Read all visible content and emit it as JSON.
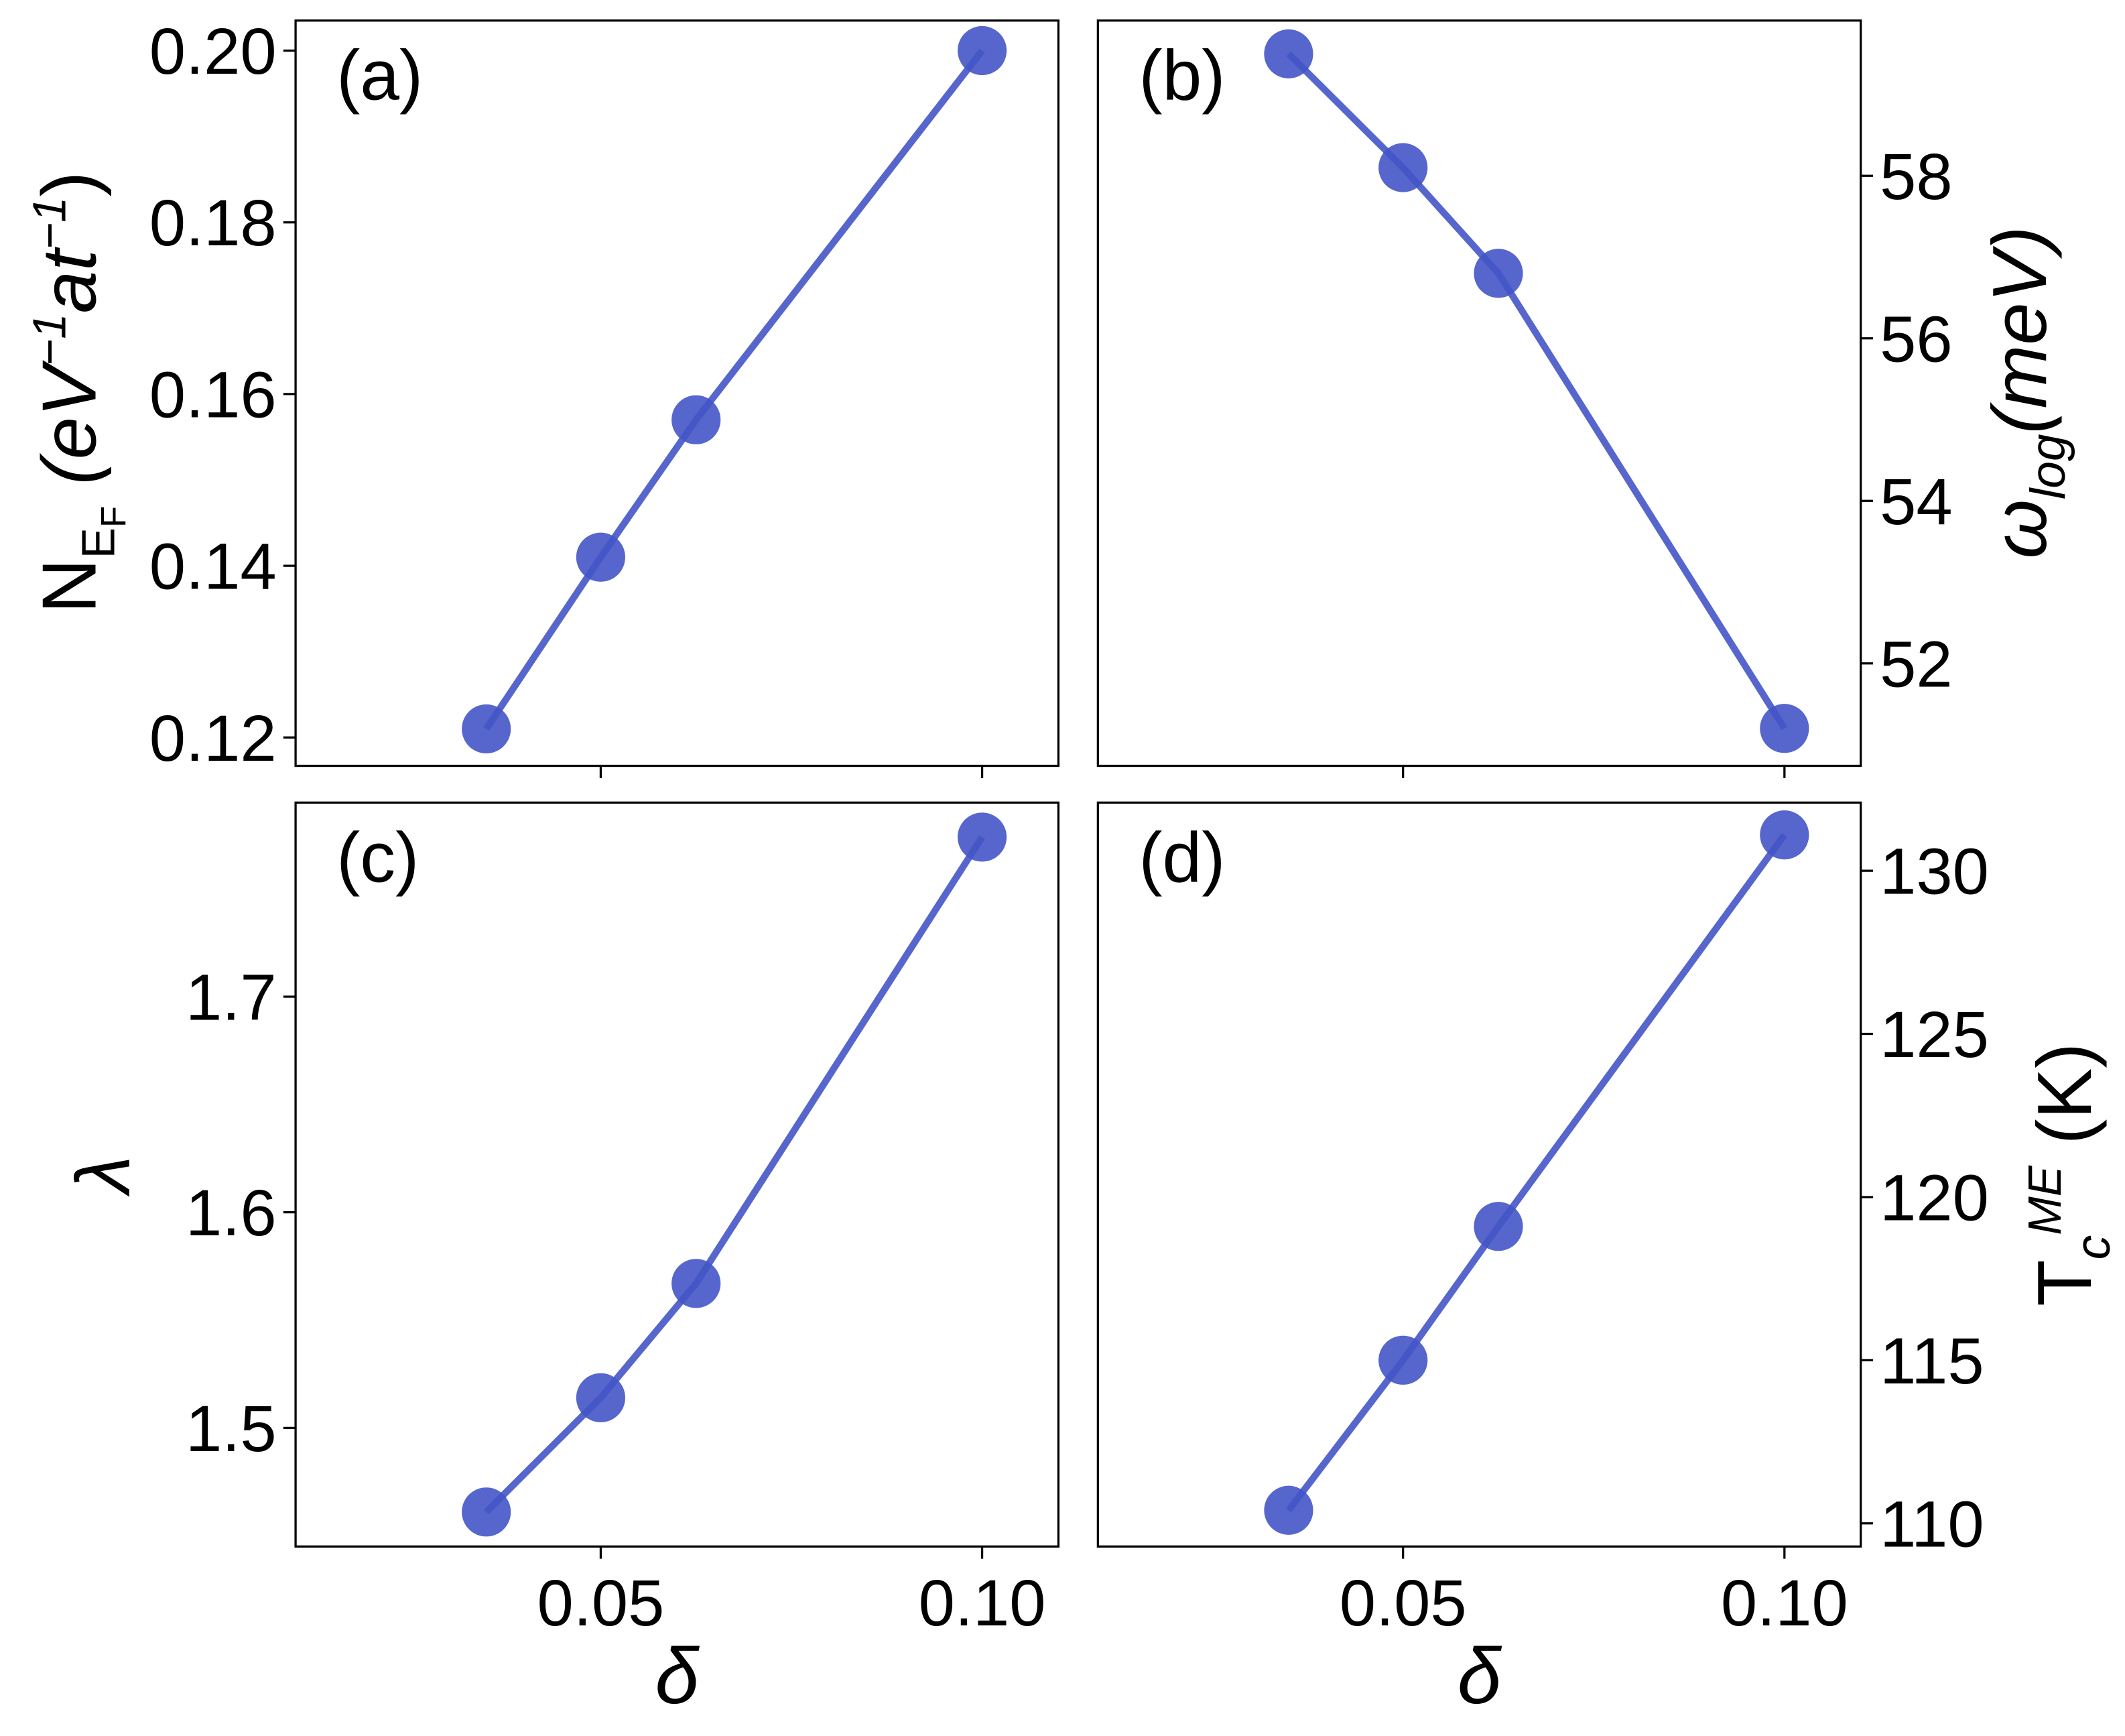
{
  "chart_data": [
    {
      "type": "line",
      "title": "(a)",
      "ylabel": [
        {
          "text": "N"
        },
        {
          "text": "E",
          "style": "sub"
        },
        {
          "text": "F",
          "style": "subsub"
        },
        {
          "text": " (eV",
          "style": "italic"
        },
        {
          "text": "−1",
          "style": "sup"
        },
        {
          "text": "at",
          "style": "italic"
        },
        {
          "text": "−1",
          "style": "sup"
        },
        {
          "text": ")"
        }
      ],
      "yaxis_side": "left",
      "show_xtick_labels": false,
      "x": [
        0.035,
        0.05,
        0.0625,
        0.1
      ],
      "series": [
        {
          "color": "#4455c6",
          "values": [
            0.121,
            0.141,
            0.157,
            0.2
          ]
        }
      ],
      "xlim": [
        0.01,
        0.11
      ],
      "xticks": [
        0.05,
        {
          "value": 0.1,
          "label": "0.10"
        }
      ],
      "ylim": [
        0.1167,
        0.2035
      ],
      "yticks": [
        0.12,
        0.14,
        0.16,
        0.18,
        {
          "value": 0.2,
          "label": "0.20"
        }
      ]
    },
    {
      "type": "line",
      "title": "(b)",
      "ylabel": [
        {
          "text": "ω",
          "style": "italic"
        },
        {
          "text": "log",
          "style": "subitalic"
        },
        {
          "text": "(meV)",
          "style": "italic"
        }
      ],
      "yaxis_side": "right",
      "show_xtick_labels": false,
      "x": [
        0.035,
        0.05,
        0.0625,
        0.1
      ],
      "series": [
        {
          "color": "#4455c6",
          "values": [
            59.5,
            58.1,
            56.8,
            51.2
          ]
        }
      ],
      "xlim": [
        0.01,
        0.11
      ],
      "xticks": [
        0.05,
        {
          "value": 0.1,
          "label": "0.10"
        }
      ],
      "ylim": [
        50.74,
        59.91
      ],
      "yticks": [
        52,
        54,
        56,
        58
      ]
    },
    {
      "type": "line",
      "title": "(c)",
      "ylabel": [
        {
          "text": "λ",
          "style": "italic"
        }
      ],
      "xlabel": "δ",
      "yaxis_side": "left",
      "show_xtick_labels": true,
      "x": [
        0.035,
        0.05,
        0.0625,
        0.1
      ],
      "series": [
        {
          "color": "#4455c6",
          "values": [
            1.461,
            1.514,
            1.567,
            1.774
          ]
        }
      ],
      "xlim": [
        0.01,
        0.11
      ],
      "xticks": [
        0.05,
        {
          "value": 0.1,
          "label": "0.10"
        }
      ],
      "ylim": [
        1.445,
        1.79
      ],
      "yticks": [
        1.5,
        1.6,
        1.7
      ]
    },
    {
      "type": "line",
      "title": "(d)",
      "ylabel": [
        {
          "text": "T"
        },
        {
          "text": "c",
          "style": "subitalic"
        },
        {
          "text": "ME",
          "style": "supitalic"
        },
        {
          "text": " (K)"
        }
      ],
      "xlabel": "δ",
      "yaxis_side": "right",
      "show_xtick_labels": true,
      "x": [
        0.035,
        0.05,
        0.0625,
        0.1
      ],
      "series": [
        {
          "color": "#4455c6",
          "values": [
            110.4,
            115.0,
            119.1,
            131.1
          ]
        }
      ],
      "xlim": [
        0.01,
        0.11
      ],
      "xticks": [
        0.05,
        {
          "value": 0.1,
          "label": "0.10"
        }
      ],
      "ylim": [
        109.29,
        132.09
      ],
      "yticks": [
        110,
        115,
        120,
        125,
        130
      ]
    }
  ]
}
